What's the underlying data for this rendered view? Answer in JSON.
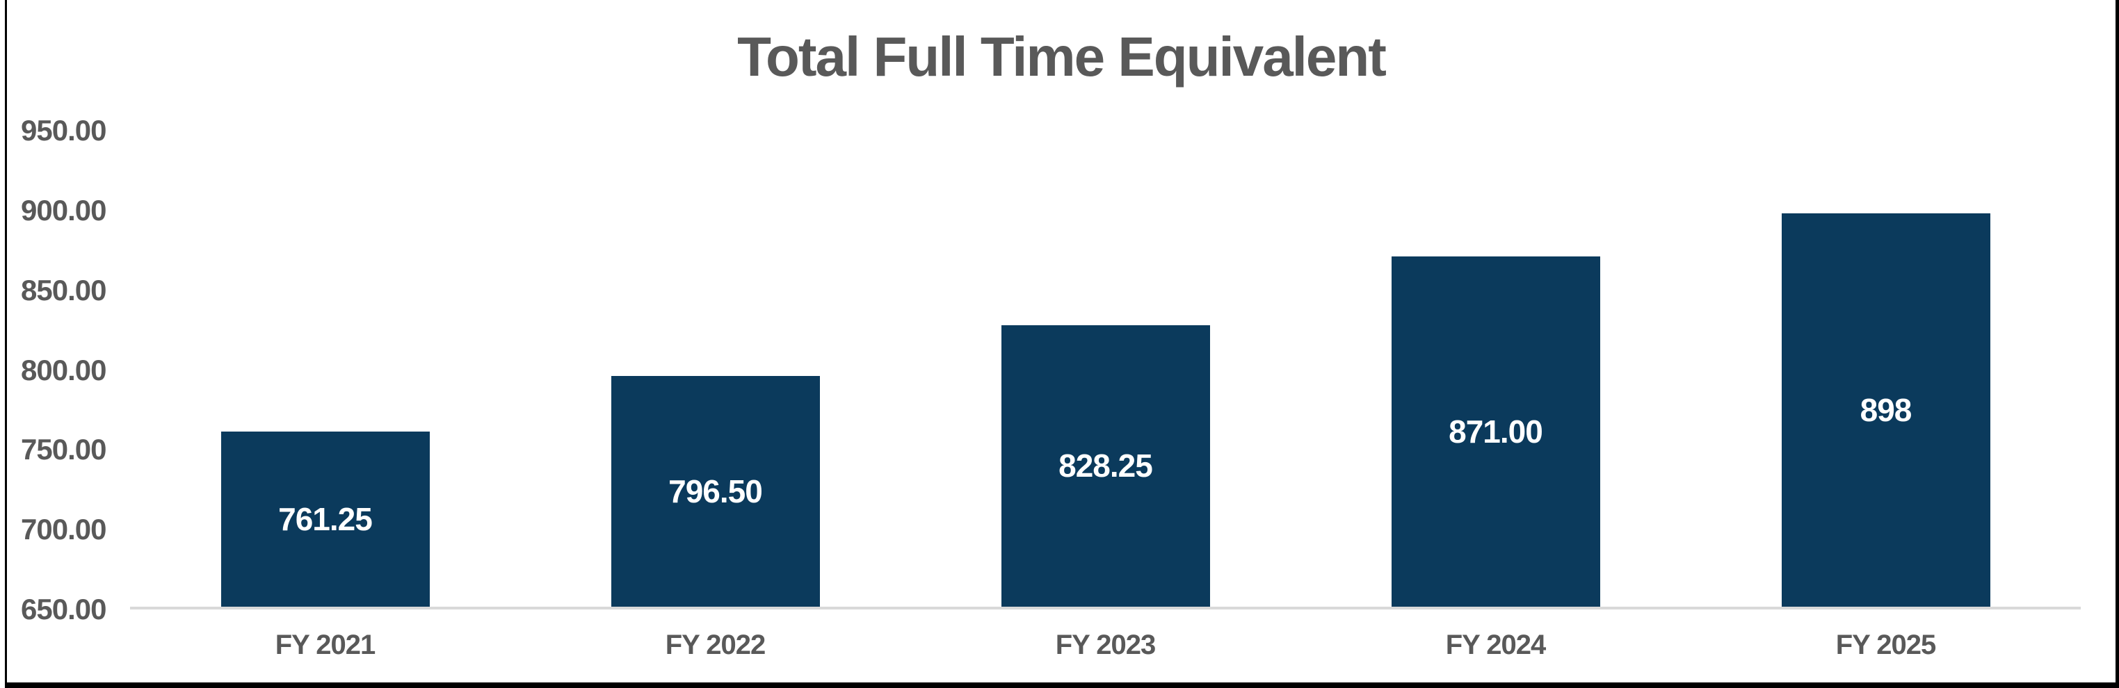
{
  "title": "Total Full Time Equivalent",
  "colors": {
    "bar": "#0B3A5C",
    "title_text": "#595959",
    "axis_text": "#595959",
    "axis_line": "#D9D9D9",
    "data_label_text": "#FFFFFF",
    "frame_border": "#000000"
  },
  "chart_data": {
    "type": "bar",
    "title": "Total Full Time Equivalent",
    "categories": [
      "FY 2021",
      "FY 2022",
      "FY 2023",
      "FY 2024",
      "FY 2025"
    ],
    "values": [
      761.25,
      796.5,
      828.25,
      871.0,
      898
    ],
    "data_labels": [
      "761.25",
      "796.50",
      "828.25",
      "871.00",
      "898"
    ],
    "data_label_position": "center-inside-bar",
    "xlabel": "",
    "ylabel": "",
    "ylim": [
      650,
      950
    ],
    "ytick_interval": 50,
    "ytick_labels": [
      "950.00",
      "900.00",
      "850.00",
      "800.00",
      "750.00",
      "700.00",
      "650.00"
    ],
    "grid": "off",
    "legend": "none",
    "bar_color": "#0B3A5C"
  }
}
